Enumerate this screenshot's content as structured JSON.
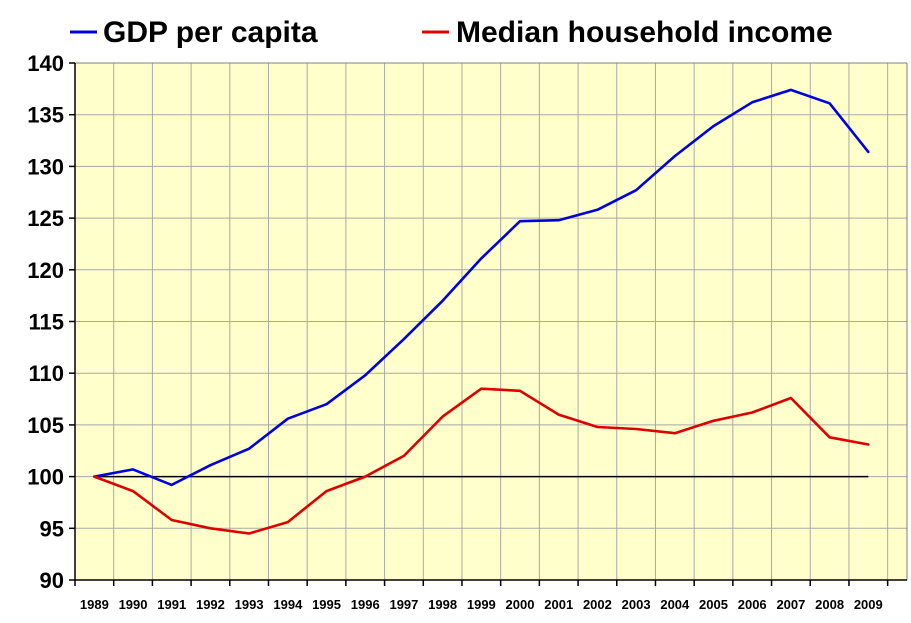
{
  "chart_data": {
    "type": "line",
    "title": "",
    "xlabel": "",
    "ylabel": "",
    "ylim": [
      90,
      140
    ],
    "yticks": [
      90,
      95,
      100,
      105,
      110,
      115,
      120,
      125,
      130,
      135,
      140
    ],
    "grid": true,
    "legend_position": "top",
    "background_color": "#FFFFCC",
    "categories": [
      "1989",
      "1990",
      "1991",
      "1992",
      "1993",
      "1994",
      "1995",
      "1996",
      "1997",
      "1998",
      "1999",
      "2000",
      "2001",
      "2002",
      "2003",
      "2004",
      "2005",
      "2006",
      "2007",
      "2008",
      "2009"
    ],
    "series": [
      {
        "name": "GDP per capita",
        "color": "#0000DD",
        "values": [
          100.0,
          100.7,
          99.2,
          101.1,
          102.7,
          105.6,
          107.0,
          109.8,
          113.3,
          117.0,
          121.1,
          124.7,
          124.8,
          125.8,
          127.7,
          131.0,
          133.9,
          136.2,
          137.4,
          136.1,
          131.4
        ]
      },
      {
        "name": "Median household income",
        "color": "#DD0000",
        "values": [
          100.0,
          98.6,
          95.8,
          95.0,
          94.5,
          95.6,
          98.6,
          100.0,
          102.0,
          105.8,
          108.5,
          108.3,
          106.0,
          104.8,
          104.6,
          104.2,
          105.4,
          106.2,
          107.6,
          103.8,
          103.1
        ]
      }
    ],
    "reference_line": {
      "value": 100,
      "color": "#000000"
    }
  }
}
